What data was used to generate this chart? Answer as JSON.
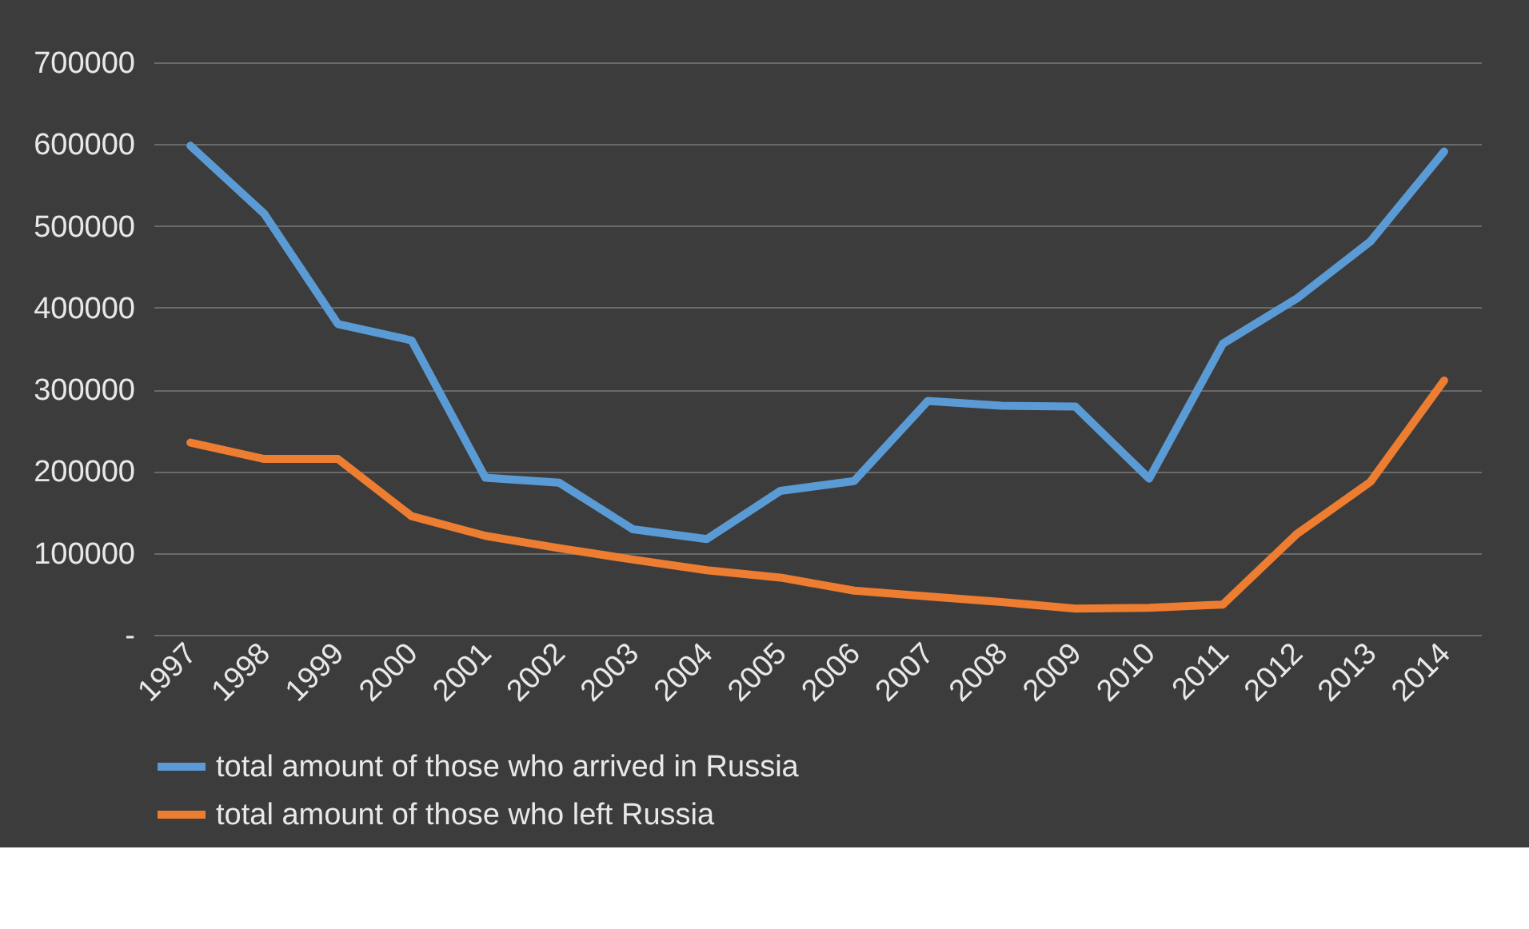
{
  "chart_data": {
    "type": "line",
    "categories": [
      "1997",
      "1998",
      "1999",
      "2000",
      "2001",
      "2002",
      "2003",
      "2004",
      "2005",
      "2006",
      "2007",
      "2008",
      "2009",
      "2010",
      "2011",
      "2012",
      "2013",
      "2014"
    ],
    "series": [
      {
        "name": "total amount of those who arrived in Russia",
        "color": "#5b9bd5",
        "values": [
          598000,
          515000,
          380000,
          360000,
          192000,
          186000,
          129000,
          117000,
          176000,
          188000,
          286000,
          280000,
          279000,
          191000,
          356000,
          411000,
          481000,
          591000
        ]
      },
      {
        "name": "total amount of those who left Russia",
        "color": "#ed7d31",
        "values": [
          235000,
          215000,
          215000,
          145000,
          121000,
          106000,
          92000,
          79000,
          70000,
          54000,
          47000,
          40000,
          32000,
          33000,
          37000,
          123000,
          187000,
          311000
        ]
      }
    ],
    "ylim": [
      0,
      700000
    ],
    "yticks": [
      {
        "value": 0,
        "label": "-"
      },
      100000,
      200000,
      300000,
      400000,
      500000,
      600000,
      700000
    ],
    "grid": "y",
    "legend": "bottom",
    "marker": "none",
    "line_style": "solid"
  }
}
